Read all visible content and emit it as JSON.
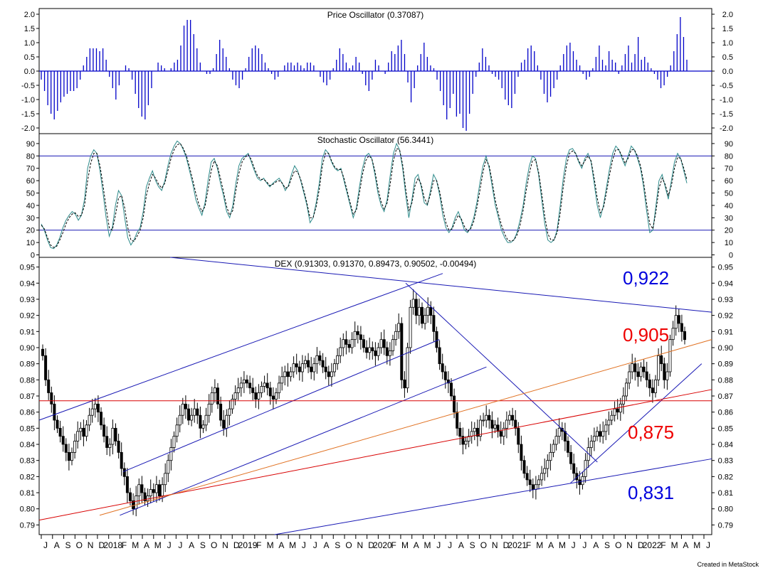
{
  "chart_data": [
    {
      "type": "bar",
      "title": "Price Oscillator (0.37087)",
      "ylim": [
        -2.2,
        2.2
      ],
      "yticks": [
        "2.0",
        "1.5",
        "1.0",
        "0.5",
        "0.0",
        "-0.5",
        "-1.0",
        "-1.5",
        "-2.0"
      ],
      "ytick_values": [
        2.0,
        1.5,
        1.0,
        0.5,
        0.0,
        -0.5,
        -1.0,
        -1.5,
        -2.0
      ],
      "bar_color": "#0000c8",
      "values": [
        -0.3,
        -0.7,
        -1.2,
        -1.5,
        -1.7,
        -1.4,
        -1.1,
        -0.9,
        -0.8,
        -0.7,
        -0.7,
        -0.6,
        -0.3,
        0.2,
        0.5,
        0.8,
        0.8,
        0.8,
        0.7,
        0.8,
        0.4,
        -0.2,
        -0.6,
        -1.0,
        -0.5,
        0.0,
        0.2,
        0.1,
        -0.3,
        -0.8,
        -1.3,
        -1.6,
        -1.7,
        -1.2,
        -0.6,
        0.0,
        0.3,
        0.2,
        0.1,
        0.0,
        0.1,
        0.3,
        0.4,
        0.9,
        1.6,
        1.8,
        1.8,
        1.3,
        0.8,
        0.3,
        0.0,
        -0.1,
        -0.1,
        0.1,
        0.6,
        1.1,
        0.8,
        0.5,
        0.1,
        -0.3,
        -0.5,
        -0.6,
        -0.3,
        0.1,
        0.5,
        0.8,
        0.9,
        0.8,
        0.6,
        0.3,
        0.1,
        -0.1,
        -0.3,
        -0.2,
        0.0,
        0.2,
        0.3,
        0.3,
        0.2,
        0.3,
        0.2,
        0.1,
        0.3,
        0.3,
        0.2,
        0.0,
        -0.2,
        -0.4,
        -0.5,
        -0.3,
        0.1,
        0.4,
        0.8,
        0.6,
        0.3,
        0.1,
        0.2,
        0.5,
        0.3,
        -0.1,
        -0.5,
        -0.7,
        -0.3,
        0.4,
        0.2,
        0.0,
        -0.1,
        0.3,
        0.7,
        0.6,
        0.9,
        1.1,
        0.6,
        -0.4,
        -1.1,
        -0.6,
        0.2,
        0.6,
        1.0,
        0.5,
        0.2,
        0.1,
        -0.3,
        -0.7,
        -1.2,
        -1.7,
        -1.3,
        -0.8,
        -1.6,
        -1.5,
        -2.0,
        -2.1,
        -1.5,
        -0.8,
        -0.2,
        0.3,
        0.8,
        0.5,
        0.2,
        -0.1,
        -0.2,
        -0.3,
        -0.6,
        -1.0,
        -1.2,
        -1.3,
        -0.8,
        -0.2,
        0.3,
        0.4,
        0.8,
        0.9,
        0.7,
        0.2,
        -0.3,
        -0.8,
        -1.1,
        -0.9,
        -0.6,
        -0.3,
        0.2,
        0.6,
        0.9,
        1.0,
        0.7,
        0.4,
        0.2,
        -0.1,
        -0.3,
        -0.2,
        0.1,
        0.5,
        0.9,
        0.4,
        0.2,
        0.7,
        0.4,
        0.3,
        -0.1,
        0.2,
        0.6,
        0.9,
        0.3,
        0.6,
        1.2,
        0.4,
        0.5,
        0.3,
        0.1,
        -0.1,
        -0.3,
        -0.6,
        -0.5,
        -0.2,
        0.2,
        0.7,
        1.3,
        1.9,
        1.2,
        0.4
      ]
    },
    {
      "type": "line",
      "title": "Stochastic Oscillator (56.3441)",
      "ylim": [
        -2,
        98
      ],
      "yticks": [
        "90",
        "80",
        "70",
        "60",
        "50",
        "40",
        "30",
        "20",
        "10",
        "0"
      ],
      "ytick_values": [
        90,
        80,
        70,
        60,
        50,
        40,
        30,
        20,
        10,
        0
      ],
      "reference_lines": [
        80,
        20
      ],
      "series": [
        {
          "style": "solid",
          "color": "#2e8b8b",
          "values": [
            25,
            20,
            12,
            6,
            5,
            8,
            14,
            22,
            28,
            32,
            35,
            33,
            28,
            32,
            45,
            70,
            80,
            85,
            82,
            68,
            50,
            30,
            15,
            22,
            40,
            52,
            48,
            30,
            14,
            8,
            12,
            18,
            22,
            35,
            55,
            62,
            68,
            60,
            55,
            52,
            60,
            72,
            82,
            88,
            92,
            90,
            85,
            78,
            68,
            58,
            45,
            38,
            32,
            42,
            60,
            75,
            78,
            70,
            58,
            48,
            35,
            30,
            40,
            58,
            72,
            78,
            80,
            82,
            75,
            68,
            62,
            60,
            62,
            58,
            55,
            58,
            60,
            62,
            58,
            52,
            56,
            65,
            72,
            68,
            60,
            50,
            40,
            26,
            30,
            42,
            58,
            78,
            85,
            82,
            75,
            70,
            68,
            70,
            60,
            50,
            40,
            30,
            38,
            55,
            70,
            80,
            82,
            78,
            65,
            50,
            40,
            35,
            45,
            65,
            82,
            90,
            85,
            70,
            48,
            30,
            45,
            62,
            65,
            55,
            42,
            40,
            52,
            65,
            60,
            48,
            32,
            22,
            18,
            22,
            30,
            35,
            28,
            20,
            18,
            22,
            30,
            42,
            58,
            72,
            80,
            70,
            55,
            40,
            30,
            20,
            14,
            10,
            10,
            12,
            18,
            28,
            40,
            58,
            72,
            80,
            78,
            65,
            45,
            25,
            12,
            10,
            12,
            20,
            40,
            62,
            78,
            85,
            86,
            82,
            75,
            70,
            78,
            82,
            75,
            58,
            40,
            30,
            40,
            55,
            70,
            82,
            88,
            85,
            78,
            72,
            80,
            88,
            85,
            78,
            70,
            55,
            35,
            18,
            20,
            40,
            60,
            65,
            55,
            45,
            60,
            75,
            82,
            78,
            68,
            58
          ]
        },
        {
          "style": "dashed",
          "color": "#000000",
          "values": [
            24,
            21,
            14,
            8,
            6,
            7,
            12,
            18,
            25,
            30,
            33,
            34,
            31,
            32,
            40,
            60,
            74,
            82,
            82,
            72,
            56,
            38,
            22,
            20,
            32,
            46,
            48,
            38,
            22,
            12,
            11,
            15,
            20,
            30,
            48,
            58,
            65,
            62,
            57,
            54,
            58,
            68,
            78,
            85,
            89,
            90,
            86,
            80,
            71,
            61,
            50,
            41,
            35,
            39,
            53,
            68,
            76,
            72,
            62,
            51,
            39,
            32,
            36,
            52,
            66,
            75,
            79,
            81,
            77,
            70,
            64,
            61,
            61,
            59,
            56,
            57,
            59,
            60,
            58,
            54,
            55,
            62,
            68,
            67,
            61,
            52,
            42,
            30,
            30,
            39,
            53,
            72,
            82,
            82,
            76,
            71,
            69,
            69,
            62,
            52,
            42,
            33,
            36,
            50,
            65,
            76,
            80,
            78,
            68,
            54,
            43,
            37,
            42,
            58,
            76,
            86,
            85,
            73,
            53,
            36,
            42,
            56,
            62,
            57,
            46,
            41,
            49,
            60,
            60,
            51,
            37,
            26,
            20,
            21,
            27,
            32,
            29,
            23,
            19,
            21,
            27,
            38,
            52,
            67,
            77,
            72,
            59,
            44,
            33,
            24,
            17,
            12,
            11,
            12,
            16,
            24,
            36,
            52,
            66,
            76,
            77,
            67,
            50,
            31,
            17,
            12,
            12,
            18,
            34,
            55,
            72,
            82,
            84,
            82,
            76,
            72,
            76,
            80,
            76,
            62,
            46,
            34,
            38,
            51,
            65,
            77,
            85,
            85,
            80,
            74,
            78,
            85,
            85,
            80,
            72,
            59,
            41,
            25,
            21,
            35,
            54,
            62,
            57,
            48,
            56,
            70,
            79,
            78,
            70,
            61
          ]
        }
      ]
    },
    {
      "type": "candlestick",
      "title": "DEX (0.91303, 0.91370, 0.89473, 0.90502, -0.00494)",
      "ylim": [
        0.784,
        0.956
      ],
      "yticks": [
        "0.95",
        "0.94",
        "0.93",
        "0.92",
        "0.91",
        "0.90",
        "0.89",
        "0.88",
        "0.87",
        "0.86",
        "0.85",
        "0.84",
        "0.83",
        "0.82",
        "0.81",
        "0.80",
        "0.79"
      ],
      "ytick_values": [
        0.95,
        0.94,
        0.93,
        0.92,
        0.91,
        0.9,
        0.89,
        0.88,
        0.87,
        0.86,
        0.85,
        0.84,
        0.83,
        0.82,
        0.81,
        0.8,
        0.79
      ],
      "closes": [
        0.895,
        0.88,
        0.872,
        0.865,
        0.855,
        0.85,
        0.845,
        0.84,
        0.835,
        0.83,
        0.835,
        0.842,
        0.848,
        0.85,
        0.845,
        0.852,
        0.858,
        0.862,
        0.865,
        0.86,
        0.852,
        0.845,
        0.838,
        0.84,
        0.85,
        0.842,
        0.835,
        0.825,
        0.82,
        0.81,
        0.805,
        0.8,
        0.808,
        0.815,
        0.81,
        0.805,
        0.808,
        0.812,
        0.81,
        0.815,
        0.808,
        0.815,
        0.822,
        0.83,
        0.838,
        0.845,
        0.852,
        0.858,
        0.865,
        0.862,
        0.855,
        0.858,
        0.862,
        0.858,
        0.85,
        0.852,
        0.858,
        0.865,
        0.872,
        0.875,
        0.865,
        0.855,
        0.85,
        0.858,
        0.862,
        0.868,
        0.872,
        0.875,
        0.878,
        0.88,
        0.878,
        0.875,
        0.872,
        0.868,
        0.872,
        0.876,
        0.878,
        0.875,
        0.87,
        0.868,
        0.872,
        0.878,
        0.882,
        0.885,
        0.882,
        0.885,
        0.89,
        0.888,
        0.885,
        0.89,
        0.892,
        0.888,
        0.885,
        0.89,
        0.895,
        0.892,
        0.888,
        0.885,
        0.882,
        0.885,
        0.89,
        0.895,
        0.9,
        0.905,
        0.902,
        0.9,
        0.905,
        0.91,
        0.908,
        0.905,
        0.9,
        0.897,
        0.9,
        0.898,
        0.895,
        0.9,
        0.905,
        0.9,
        0.895,
        0.898,
        0.905,
        0.91,
        0.915,
        0.88,
        0.875,
        0.9,
        0.925,
        0.93,
        0.92,
        0.925,
        0.915,
        0.92,
        0.925,
        0.92,
        0.91,
        0.9,
        0.89,
        0.885,
        0.88,
        0.878,
        0.87,
        0.86,
        0.85,
        0.845,
        0.84,
        0.842,
        0.845,
        0.848,
        0.85,
        0.845,
        0.855,
        0.855,
        0.858,
        0.855,
        0.85,
        0.852,
        0.848,
        0.845,
        0.85,
        0.855,
        0.858,
        0.855,
        0.85,
        0.84,
        0.83,
        0.822,
        0.818,
        0.815,
        0.812,
        0.815,
        0.818,
        0.822,
        0.825,
        0.83,
        0.835,
        0.84,
        0.845,
        0.85,
        0.848,
        0.842,
        0.835,
        0.828,
        0.822,
        0.818,
        0.815,
        0.82,
        0.83,
        0.838,
        0.842,
        0.845,
        0.848,
        0.845,
        0.848,
        0.852,
        0.855,
        0.858,
        0.862,
        0.86,
        0.865,
        0.87,
        0.878,
        0.885,
        0.89,
        0.885,
        0.882,
        0.888,
        0.885,
        0.88,
        0.875,
        0.872,
        0.88,
        0.895,
        0.89,
        0.88,
        0.885,
        0.905,
        0.912,
        0.92,
        0.915,
        0.91,
        0.905
      ]
    }
  ],
  "x_axis_labels": [
    "J",
    "A",
    "S",
    "O",
    "N",
    "D",
    "2018",
    "F",
    "M",
    "A",
    "M",
    "J",
    "J",
    "A",
    "S",
    "O",
    "N",
    "D",
    "2019",
    "F",
    "M",
    "A",
    "M",
    "J",
    "J",
    "A",
    "S",
    "O",
    "N",
    "D",
    "2020",
    "F",
    "M",
    "A",
    "M",
    "J",
    "J",
    "A",
    "S",
    "O",
    "N",
    "D",
    "2021",
    "F",
    "M",
    "A",
    "M",
    "J",
    "J",
    "A",
    "S",
    "O",
    "N",
    "D",
    "2022",
    "F",
    "M",
    "A",
    "M",
    "J"
  ],
  "annotations": [
    {
      "text": "0,922",
      "color": "#0000dd"
    },
    {
      "text": "0,905",
      "color": "#ee0000"
    },
    {
      "text": "0,875",
      "color": "#ee0000"
    },
    {
      "text": "0,831",
      "color": "#0000dd"
    }
  ],
  "trendline_colors": {
    "blue": "#1818b4",
    "red": "#d80000",
    "orange": "#e07020",
    "reference": "#1818b4"
  },
  "footer": "Created in MetaStock"
}
